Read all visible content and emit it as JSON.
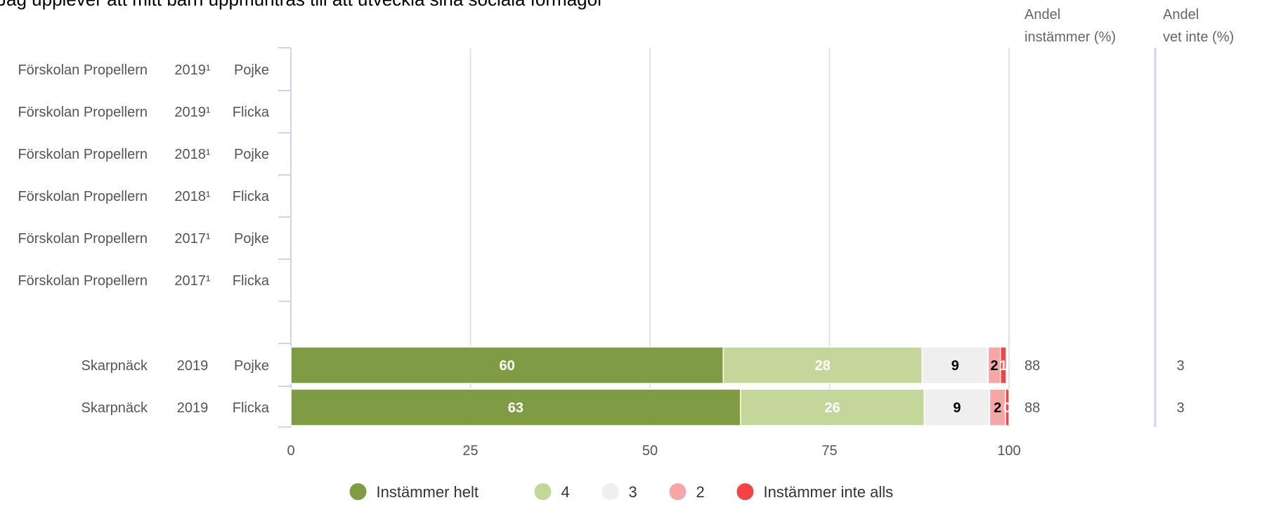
{
  "chart_data": {
    "type": "bar",
    "orientation": "horizontal",
    "stacked": true,
    "title": "Jag upplever att mitt barn uppmuntras till att utveckla sina sociala förmågor",
    "column_headers": {
      "instammer": [
        "Andel",
        "instämmer (%)"
      ],
      "vet_inte": [
        "Andel",
        "vet inte (%)"
      ]
    },
    "rows": [
      {
        "school": "Förskolan Propellern",
        "year": "2019¹",
        "gender": "Pojke",
        "values": null,
        "andel_instammer": "",
        "andel_vet_inte": ""
      },
      {
        "school": "Förskolan Propellern",
        "year": "2019¹",
        "gender": "Flicka",
        "values": null,
        "andel_instammer": "",
        "andel_vet_inte": ""
      },
      {
        "school": "Förskolan Propellern",
        "year": "2018¹",
        "gender": "Pojke",
        "values": null,
        "andel_instammer": "",
        "andel_vet_inte": ""
      },
      {
        "school": "Förskolan Propellern",
        "year": "2018¹",
        "gender": "Flicka",
        "values": null,
        "andel_instammer": "",
        "andel_vet_inte": ""
      },
      {
        "school": "Förskolan Propellern",
        "year": "2017¹",
        "gender": "Pojke",
        "values": null,
        "andel_instammer": "",
        "andel_vet_inte": ""
      },
      {
        "school": "Förskolan Propellern",
        "year": "2017¹",
        "gender": "Flicka",
        "values": null,
        "andel_instammer": "",
        "andel_vet_inte": ""
      },
      {
        "school": "Skarpnäck",
        "year": "2019",
        "gender": "Pojke",
        "values": [
          60.2,
          27.7,
          9.2,
          1.7,
          0.8
        ],
        "labels": [
          "60",
          "28",
          "9",
          "2",
          "1"
        ],
        "andel_instammer": "88",
        "andel_vet_inte": "3"
      },
      {
        "school": "Skarpnäck",
        "year": "2019",
        "gender": "Flicka",
        "values": [
          62.6,
          25.6,
          9.1,
          2.2,
          0.5
        ],
        "labels": [
          "63",
          "26",
          "9",
          "2",
          "0"
        ],
        "andel_instammer": "88",
        "andel_vet_inte": "3"
      }
    ],
    "series": [
      {
        "name": "Instämmer helt",
        "color": "#7f9c45",
        "label_color": "#ffffff"
      },
      {
        "name": "4",
        "color": "#c4d79b",
        "label_color": "#ffffff"
      },
      {
        "name": "3",
        "color": "#efefef",
        "label_color": "#000000"
      },
      {
        "name": "2",
        "color": "#f7a6a6",
        "label_color": "#000000"
      },
      {
        "name": "Instämmer inte alls",
        "color": "#f54444",
        "label_color": "#ffffff"
      }
    ],
    "xaxis": {
      "ticks": [
        0,
        25,
        50,
        75,
        100
      ],
      "range": [
        0,
        100
      ]
    },
    "grid": true,
    "legend_position": "bottom"
  }
}
